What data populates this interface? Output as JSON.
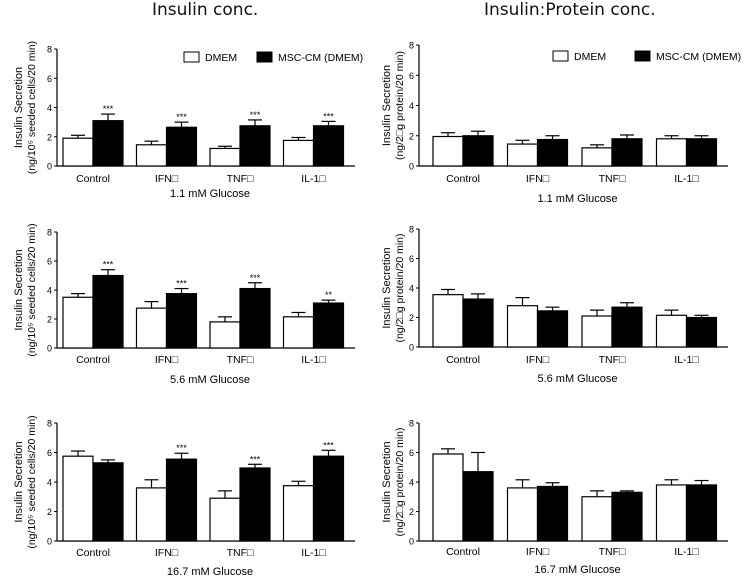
{
  "columns": {
    "left_title": "Insulin conc.",
    "right_title": "Insulin:Protein conc."
  },
  "chart_data": [
    {
      "type": "bar",
      "id": "left-1.1",
      "column": "left",
      "title": "",
      "xlabel": "1.1 mM Glucose",
      "ylabel": [
        "Insulin Secretion",
        "(ng/10⁵ seeded cells/20 min)"
      ],
      "ylim": [
        0,
        8
      ],
      "yticks": [
        0,
        2,
        4,
        6,
        8
      ],
      "categories": [
        "Control",
        "IFN□",
        "TNF□",
        "IL-1□"
      ],
      "legend": {
        "position": "top-right",
        "entries": [
          "DMEM",
          "MSC-CM (DMEM)"
        ]
      },
      "series": [
        {
          "name": "DMEM",
          "color": "#ffffff",
          "values": [
            1.9,
            1.45,
            1.2,
            1.75
          ],
          "errors": [
            0.2,
            0.25,
            0.15,
            0.2
          ]
        },
        {
          "name": "MSC-CM (DMEM)",
          "color": "#000000",
          "values": [
            3.1,
            2.65,
            2.75,
            2.75
          ],
          "errors": [
            0.45,
            0.35,
            0.4,
            0.3
          ]
        }
      ],
      "significance": [
        "***",
        "***",
        "***",
        "***"
      ]
    },
    {
      "type": "bar",
      "id": "right-1.1",
      "column": "right",
      "title": "",
      "xlabel": "1.1 mM Glucose",
      "ylabel": [
        "Insulin Secretion",
        "(ng/2□g protein/20 min)"
      ],
      "ylim": [
        0,
        8
      ],
      "yticks": [
        0,
        2,
        4,
        6,
        8
      ],
      "categories": [
        "Control",
        "IFN□",
        "TNF□",
        "IL-1□"
      ],
      "legend": {
        "position": "top-right",
        "entries": [
          "DMEM",
          "MSC-CM (DMEM)"
        ]
      },
      "series": [
        {
          "name": "DMEM",
          "color": "#ffffff",
          "values": [
            1.95,
            1.45,
            1.2,
            1.8
          ],
          "errors": [
            0.25,
            0.25,
            0.2,
            0.2
          ]
        },
        {
          "name": "MSC-CM (DMEM)",
          "color": "#000000",
          "values": [
            2.0,
            1.75,
            1.8,
            1.8
          ],
          "errors": [
            0.3,
            0.25,
            0.25,
            0.2
          ]
        }
      ],
      "significance": [
        "",
        "",
        "",
        ""
      ]
    },
    {
      "type": "bar",
      "id": "left-5.6",
      "column": "left",
      "title": "",
      "xlabel": "5.6 mM Glucose",
      "ylabel": [
        "Insulin Secretion",
        "(ng/10⁵ seeded cells/20 min)"
      ],
      "ylim": [
        0,
        8
      ],
      "yticks": [
        0,
        2,
        4,
        6,
        8
      ],
      "categories": [
        "Control",
        "IFN□",
        "TNF□",
        "IL-1□"
      ],
      "legend": null,
      "series": [
        {
          "name": "DMEM",
          "color": "#ffffff",
          "values": [
            3.5,
            2.75,
            1.8,
            2.15
          ],
          "errors": [
            0.25,
            0.45,
            0.35,
            0.3
          ]
        },
        {
          "name": "MSC-CM (DMEM)",
          "color": "#000000",
          "values": [
            5.0,
            3.75,
            4.1,
            3.1
          ],
          "errors": [
            0.4,
            0.35,
            0.4,
            0.2
          ]
        }
      ],
      "significance": [
        "***",
        "***",
        "***",
        "**"
      ]
    },
    {
      "type": "bar",
      "id": "right-5.6",
      "column": "right",
      "title": "",
      "xlabel": "5.6 mM Glucose",
      "ylabel": [
        "Insulin Secretion",
        "(ng/2□g protein/20 min)"
      ],
      "ylim": [
        0,
        8
      ],
      "yticks": [
        0,
        2,
        4,
        6,
        8
      ],
      "categories": [
        "Control",
        "IFN□",
        "TNF□",
        "IL-1□"
      ],
      "legend": null,
      "series": [
        {
          "name": "DMEM",
          "color": "#ffffff",
          "values": [
            3.55,
            2.8,
            2.1,
            2.15
          ],
          "errors": [
            0.35,
            0.55,
            0.4,
            0.35
          ]
        },
        {
          "name": "MSC-CM (DMEM)",
          "color": "#000000",
          "values": [
            3.25,
            2.45,
            2.7,
            2.0
          ],
          "errors": [
            0.35,
            0.25,
            0.3,
            0.15
          ]
        }
      ],
      "significance": [
        "",
        "",
        "",
        ""
      ]
    },
    {
      "type": "bar",
      "id": "left-16.7",
      "column": "left",
      "title": "",
      "xlabel": "16.7 mM Glucose",
      "ylabel": [
        "Insulin Secretion",
        "(ng/10⁵ seeded cells/20 min)"
      ],
      "ylim": [
        0,
        8
      ],
      "yticks": [
        0,
        2,
        4,
        6,
        8
      ],
      "categories": [
        "Control",
        "IFN□",
        "TNF□",
        "IL-1□"
      ],
      "legend": null,
      "series": [
        {
          "name": "DMEM",
          "color": "#ffffff",
          "values": [
            5.75,
            3.6,
            2.9,
            3.75
          ],
          "errors": [
            0.35,
            0.55,
            0.5,
            0.3
          ]
        },
        {
          "name": "MSC-CM (DMEM)",
          "color": "#000000",
          "values": [
            5.3,
            5.55,
            4.95,
            5.75
          ],
          "errors": [
            0.2,
            0.4,
            0.25,
            0.4
          ]
        }
      ],
      "significance": [
        "",
        "***",
        "***",
        "***"
      ]
    },
    {
      "type": "bar",
      "id": "right-16.7",
      "column": "right",
      "title": "",
      "xlabel": "16.7 mM Glucose",
      "ylabel": [
        "Insulin Secretion",
        "(ng/2□g protein/20 min)"
      ],
      "ylim": [
        0,
        8
      ],
      "yticks": [
        0,
        2,
        4,
        6,
        8
      ],
      "categories": [
        "Control",
        "IFN□",
        "TNF□",
        "IL-1□"
      ],
      "legend": null,
      "series": [
        {
          "name": "DMEM",
          "color": "#ffffff",
          "values": [
            5.9,
            3.6,
            3.0,
            3.8
          ],
          "errors": [
            0.35,
            0.55,
            0.4,
            0.35
          ]
        },
        {
          "name": "MSC-CM (DMEM)",
          "color": "#000000",
          "values": [
            4.7,
            3.7,
            3.3,
            3.8
          ],
          "errors": [
            1.3,
            0.25,
            0.1,
            0.3
          ]
        }
      ],
      "significance": [
        "",
        "",
        "",
        ""
      ]
    }
  ]
}
